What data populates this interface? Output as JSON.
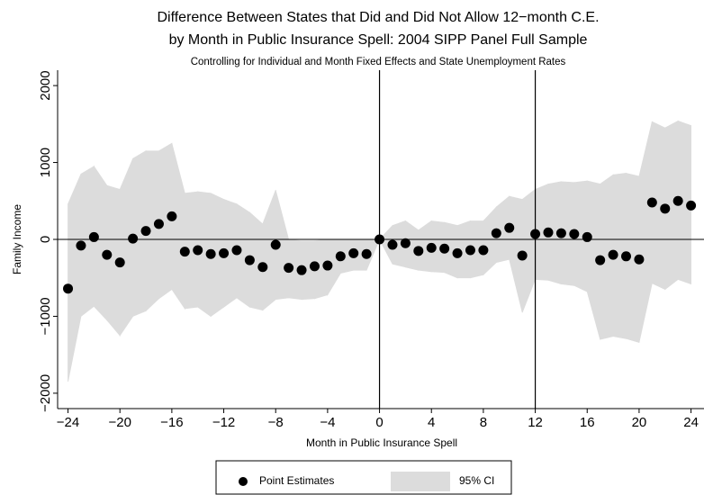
{
  "chart_data": {
    "type": "scatter",
    "title": "Difference Between States that Did and Did Not Allow 12−month C.E.",
    "title_line2": "by Month in Public Insurance Spell: 2004 SIPP Panel Full Sample",
    "subtitle": "Controlling for Individual and Month Fixed Effects and State Unemployment Rates",
    "x_label": "Month in Public Insurance Spell",
    "y_label": "Family Income",
    "x": [
      -24,
      -23,
      -22,
      -21,
      -20,
      -19,
      -18,
      -17,
      -16,
      -15,
      -14,
      -13,
      -12,
      -11,
      -10,
      -9,
      -8,
      -7,
      -6,
      -5,
      -4,
      -3,
      -2,
      -1,
      0,
      1,
      2,
      3,
      4,
      5,
      6,
      7,
      8,
      9,
      10,
      11,
      12,
      13,
      14,
      15,
      16,
      17,
      18,
      19,
      20,
      21,
      22,
      23,
      24
    ],
    "series": [
      {
        "name": "Point Estimates",
        "color": "#000000",
        "values": [
          -640,
          -80,
          30,
          -200,
          -300,
          10,
          110,
          200,
          300,
          -160,
          -140,
          -190,
          -180,
          -140,
          -270,
          -360,
          -70,
          -370,
          -400,
          -350,
          -340,
          -220,
          -180,
          -190,
          0,
          -70,
          -50,
          -150,
          -110,
          -120,
          -180,
          -140,
          -140,
          80,
          150,
          -210,
          70,
          90,
          80,
          70,
          30,
          -270,
          -200,
          -220,
          -260,
          480,
          400,
          500,
          440
        ]
      },
      {
        "name": "95% CI",
        "color": "#dcdcdc",
        "upper": [
          460,
          850,
          950,
          700,
          650,
          1050,
          1150,
          1150,
          1250,
          600,
          620,
          600,
          520,
          460,
          350,
          200,
          640,
          0,
          -20,
          -20,
          0,
          0,
          0,
          0,
          0,
          180,
          240,
          120,
          240,
          220,
          180,
          240,
          240,
          420,
          560,
          520,
          650,
          720,
          750,
          740,
          760,
          720,
          840,
          860,
          820,
          1530,
          1450,
          1540,
          1480
        ],
        "lower": [
          -1850,
          -1000,
          -870,
          -1050,
          -1250,
          -1000,
          -930,
          -770,
          -650,
          -900,
          -880,
          -1000,
          -880,
          -760,
          -880,
          -920,
          -780,
          -760,
          -780,
          -770,
          -720,
          -440,
          -400,
          -400,
          0,
          -320,
          -360,
          -400,
          -420,
          -430,
          -500,
          -500,
          -460,
          -300,
          -260,
          -950,
          -520,
          -530,
          -580,
          -600,
          -680,
          -1300,
          -1260,
          -1290,
          -1340,
          -570,
          -650,
          -520,
          -580
        ]
      }
    ],
    "xlim": [
      -24.8,
      25
    ],
    "ylim": [
      -2200,
      2200
    ],
    "xticks": [
      {
        "value": -24,
        "label": "−24"
      },
      {
        "value": -20,
        "label": "−20"
      },
      {
        "value": -16,
        "label": "−16"
      },
      {
        "value": -12,
        "label": "−12"
      },
      {
        "value": -8,
        "label": "−8"
      },
      {
        "value": -4,
        "label": "−4"
      },
      0,
      4,
      8,
      12,
      16,
      20,
      24
    ],
    "yticks": [
      {
        "value": -2000,
        "label": "−2000"
      },
      {
        "value": -1000,
        "label": "−1000"
      },
      0,
      1000,
      2000
    ],
    "vlines": [
      0,
      12
    ],
    "hline": 0,
    "legend": "bottom"
  }
}
